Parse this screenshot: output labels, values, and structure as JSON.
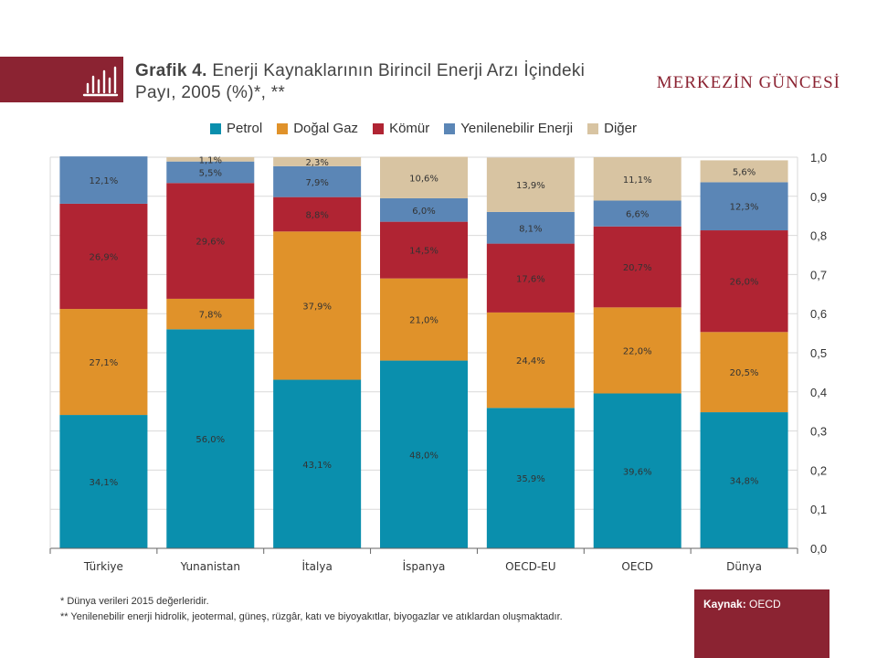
{
  "header": {
    "title_bold": "Grafik 4.",
    "title_rest": " Enerji Kaynaklarının Birincil Enerji Arzı İçindeki Payı, 2005 (%)*, **",
    "brand": "MERKEZİN GÜNCESİ",
    "icon": "bar-chart-icon"
  },
  "colors": {
    "brand": "#8b2332",
    "Petrol": "#0a8fad",
    "Doğal Gaz": "#e0922a",
    "Kömür": "#b02433",
    "Yenilenebilir Enerji": "#5b86b6",
    "Diğer": "#d8c4a2"
  },
  "chart_data": {
    "type": "bar",
    "stacked": true,
    "categories": [
      "Türkiye",
      "Yunanistan",
      "İtalya",
      "İspanya",
      "OECD-EU",
      "OECD",
      "Dünya"
    ],
    "series": [
      {
        "name": "Petrol",
        "values": [
          0.341,
          0.56,
          0.431,
          0.48,
          0.359,
          0.396,
          0.348
        ],
        "labels": [
          "34,1%",
          "56,0%",
          "43,1%",
          "48,0%",
          "35,9%",
          "39,6%",
          "34,8%"
        ]
      },
      {
        "name": "Doğal Gaz",
        "values": [
          0.271,
          0.078,
          0.379,
          0.21,
          0.244,
          0.22,
          0.205
        ],
        "labels": [
          "27,1%",
          "7,8%",
          "37,9%",
          "21,0%",
          "24,4%",
          "22,0%",
          "20,5%"
        ]
      },
      {
        "name": "Kömür",
        "values": [
          0.269,
          0.296,
          0.088,
          0.145,
          0.176,
          0.207,
          0.26
        ],
        "labels": [
          "26,9%",
          "29,6%",
          "8,8%",
          "14,5%",
          "17,6%",
          "20,7%",
          "26,0%"
        ]
      },
      {
        "name": "Yenilenebilir Enerji",
        "values": [
          0.121,
          0.055,
          0.079,
          0.06,
          0.081,
          0.066,
          0.123
        ],
        "labels": [
          "12,1%",
          "5,5%",
          "7,9%",
          "6,0%",
          "8,1%",
          "6,6%",
          "12,3%"
        ]
      },
      {
        "name": "Diğer",
        "values": [
          0.0,
          0.011,
          0.023,
          0.106,
          0.139,
          0.111,
          0.056
        ],
        "labels": [
          "",
          "1,1%",
          "2,3%",
          "10,6%",
          "13,9%",
          "11,1%",
          "5,6%"
        ]
      }
    ],
    "ylim": [
      0,
      1.0
    ],
    "yticks": [
      "0,0",
      "0,1",
      "0,2",
      "0,3",
      "0,4",
      "0,5",
      "0,6",
      "0,7",
      "0,8",
      "0,9",
      "1,0"
    ],
    "y_axis_side": "right",
    "grid": true,
    "legend_position": "top"
  },
  "footnotes": [
    "* Dünya verileri 2015 değerleridir.",
    "** Yenilenebilir enerji hidrolik, jeotermal, güneş, rüzgâr, katı ve biyoyakıtlar, biyogazlar ve atıklardan oluşmaktadır."
  ],
  "source": {
    "label": "Kaynak:",
    "value": "OECD"
  }
}
